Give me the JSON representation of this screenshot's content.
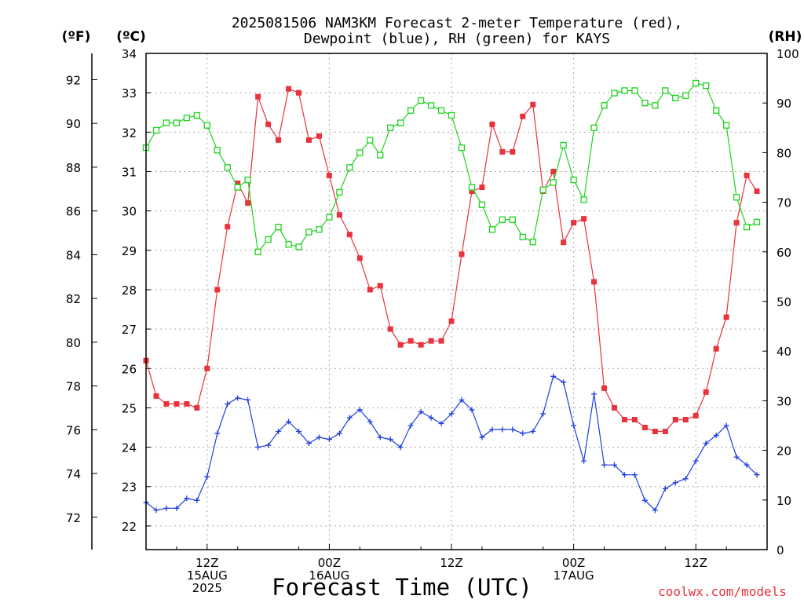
{
  "chart_data": {
    "type": "line",
    "title": "2025081506 NAM3KM Forecast 2-meter Temperature (red),",
    "subtitle": "Dewpoint (blue), RH (green) for KAYS",
    "xlabel": "Forecast Time (UTC)",
    "unit_f_label": "(ºF)",
    "unit_c_label": "(ºC)",
    "unit_rh_label": "(RH)",
    "credit": "coolwx.com/models",
    "grid": true,
    "x_range": [
      0,
      61
    ],
    "ylim_c": [
      21.4,
      34
    ],
    "ylim_rh": [
      0,
      100
    ],
    "f_ticks": [
      "72",
      "74",
      "76",
      "78",
      "80",
      "82",
      "84",
      "86",
      "88",
      "90",
      "92"
    ],
    "c_ticks": [
      "22",
      "23",
      "24",
      "25",
      "26",
      "27",
      "28",
      "29",
      "30",
      "31",
      "32",
      "33",
      "34"
    ],
    "rh_ticks": [
      "0",
      "10",
      "20",
      "30",
      "40",
      "50",
      "60",
      "70",
      "80",
      "90",
      "100"
    ],
    "x_ticks": [
      {
        "hour": 6,
        "lines": [
          "12Z",
          "15AUG",
          "2025"
        ]
      },
      {
        "hour": 18,
        "lines": [
          "00Z",
          "16AUG"
        ]
      },
      {
        "hour": 30,
        "lines": [
          "12Z"
        ]
      },
      {
        "hour": 42,
        "lines": [
          "00Z",
          "17AUG"
        ]
      },
      {
        "hour": 54,
        "lines": [
          "12Z"
        ]
      }
    ],
    "series": [
      {
        "name": "Temperature",
        "color": "#e8323c",
        "marker": "filled-square",
        "axis": "celsius",
        "values": [
          26.2,
          25.3,
          25.1,
          25.1,
          25.1,
          25.0,
          26.0,
          28.0,
          29.6,
          30.7,
          30.2,
          32.9,
          32.2,
          31.8,
          33.1,
          33.0,
          31.8,
          31.9,
          30.9,
          29.9,
          29.4,
          28.8,
          28.0,
          28.1,
          27.0,
          26.6,
          26.7,
          26.6,
          26.7,
          26.7,
          27.2,
          28.9,
          30.5,
          30.6,
          32.2,
          31.5,
          31.5,
          32.4,
          32.7,
          30.5,
          31.0,
          29.2,
          29.7,
          29.8,
          28.2,
          25.5,
          25.0,
          24.7,
          24.7,
          24.5,
          24.4,
          24.4,
          24.7,
          24.7,
          24.8,
          25.4,
          26.5,
          27.3,
          29.7,
          30.9,
          30.5
        ]
      },
      {
        "name": "Dewpoint",
        "color": "#1f3fe0",
        "marker": "plus",
        "axis": "celsius",
        "values": [
          22.6,
          22.4,
          22.45,
          22.45,
          22.7,
          22.65,
          23.25,
          24.35,
          25.1,
          25.25,
          25.2,
          24.0,
          24.05,
          24.4,
          24.65,
          24.4,
          24.1,
          24.25,
          24.2,
          24.35,
          24.75,
          24.95,
          24.65,
          24.25,
          24.2,
          24.0,
          24.55,
          24.9,
          24.75,
          24.6,
          24.85,
          25.2,
          24.95,
          24.25,
          24.45,
          24.45,
          24.45,
          24.35,
          24.4,
          24.85,
          25.8,
          25.65,
          24.55,
          23.65,
          25.35,
          23.55,
          23.55,
          23.3,
          23.3,
          22.65,
          22.4,
          22.95,
          23.1,
          23.2,
          23.65,
          24.1,
          24.3,
          24.55,
          23.75,
          23.55,
          23.3
        ]
      },
      {
        "name": "RH",
        "color": "#1ed21e",
        "marker": "open-square",
        "axis": "rh",
        "values": [
          81,
          84.5,
          86,
          86,
          87,
          87.5,
          85.5,
          80.5,
          77,
          73,
          74.5,
          60,
          62.5,
          65,
          61.5,
          61,
          64,
          64.5,
          67,
          72,
          77,
          80,
          82.5,
          79.5,
          85,
          86,
          88.5,
          90.5,
          89.5,
          88.5,
          87.5,
          81,
          73,
          69.5,
          64.5,
          66.5,
          66.5,
          63,
          62,
          72.5,
          74,
          81.5,
          74.5,
          70.5,
          85,
          89.5,
          92,
          92.5,
          92.5,
          90,
          89.5,
          92.5,
          91,
          91.5,
          94,
          93.5,
          88.5,
          85.5,
          71,
          65,
          66
        ]
      }
    ]
  }
}
